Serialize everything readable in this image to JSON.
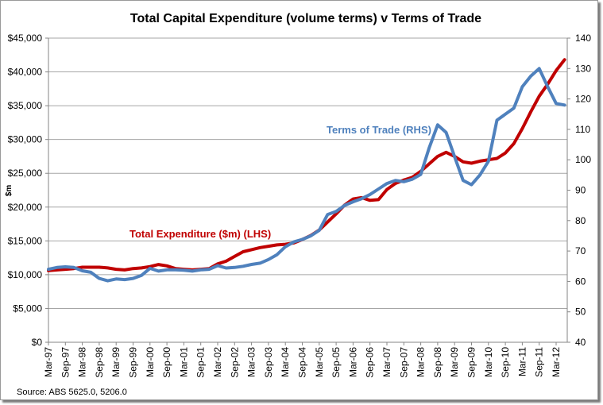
{
  "chart_data": {
    "type": "line",
    "title": "Total Capital Expenditure (volume terms) v Terms of Trade",
    "ylabel": "$m",
    "y2label": "",
    "xlabel": "",
    "ylim": [
      0,
      45000
    ],
    "y2lim": [
      40,
      140
    ],
    "grid": true,
    "yticks": [
      "$0",
      "$5,000",
      "$10,000",
      "$15,000",
      "$20,000",
      "$25,000",
      "$30,000",
      "$35,000",
      "$40,000",
      "$45,000"
    ],
    "ytick_values": [
      0,
      5000,
      10000,
      15000,
      20000,
      25000,
      30000,
      35000,
      40000,
      45000
    ],
    "y2ticks": [
      "40",
      "50",
      "60",
      "70",
      "80",
      "90",
      "100",
      "110",
      "120",
      "130",
      "140"
    ],
    "y2tick_values": [
      40,
      50,
      60,
      70,
      80,
      90,
      100,
      110,
      120,
      130,
      140
    ],
    "xtick_labels": [
      "Mar-97",
      "Sep-97",
      "Mar-98",
      "Sep-98",
      "Mar-99",
      "Sep-99",
      "Mar-00",
      "Sep-00",
      "Mar-01",
      "Sep-01",
      "Mar-02",
      "Sep-02",
      "Mar-03",
      "Sep-03",
      "Mar-04",
      "Sep-04",
      "Mar-05",
      "Sep-05",
      "Mar-06",
      "Sep-06",
      "Mar-07",
      "Sep-07",
      "Mar-08",
      "Sep-08",
      "Mar-09",
      "Sep-09",
      "Mar-10",
      "Sep-10",
      "Mar-11",
      "Sep-11",
      "Mar-12"
    ],
    "x_frequency": "quarterly",
    "series": [
      {
        "name": "Total Expenditure ($m) (LHS)",
        "axis": "left",
        "color": "#C00000",
        "values": [
          10600,
          10700,
          10800,
          10900,
          11100,
          11100,
          11100,
          11000,
          10800,
          10700,
          10900,
          11000,
          11200,
          11500,
          11300,
          10900,
          10800,
          10700,
          10800,
          10900,
          11600,
          12000,
          12700,
          13400,
          13700,
          14000,
          14200,
          14400,
          14500,
          14700,
          15200,
          15800,
          16600,
          17800,
          19000,
          20300,
          21200,
          21400,
          21000,
          21100,
          22600,
          23500,
          24000,
          24400,
          25300,
          26400,
          27500,
          28100,
          27500,
          26700,
          26500,
          26800,
          27000,
          27200,
          28000,
          29400,
          31600,
          34100,
          36400,
          38200,
          40200,
          41800
        ]
      },
      {
        "name": "Terms of Trade (RHS)",
        "axis": "right",
        "color": "#4F81BD",
        "values": [
          64.0,
          64.6,
          64.8,
          64.6,
          63.5,
          63.0,
          61.0,
          60.2,
          60.8,
          60.6,
          61.0,
          62.0,
          64.3,
          63.4,
          63.8,
          63.8,
          63.7,
          63.4,
          63.8,
          64.0,
          65.2,
          64.4,
          64.6,
          65.0,
          65.6,
          66.0,
          67.2,
          68.8,
          71.4,
          73.0,
          73.8,
          75.0,
          76.8,
          82.0,
          83.0,
          85.0,
          86.2,
          87.2,
          88.6,
          90.4,
          92.2,
          93.2,
          92.8,
          93.6,
          95.2,
          104.0,
          111.5,
          109.0,
          101.0,
          93.2,
          91.8,
          95.0,
          99.5,
          113.0,
          115.0,
          117.0,
          124.0,
          127.5,
          130.0,
          124.0,
          118.5,
          118.0
        ]
      }
    ],
    "annotations": [
      "Total Expenditure ($m) (LHS)",
      "Terms of Trade (RHS)"
    ],
    "legend": "inline-annotations"
  },
  "source_note": "Source: ABS 5625.0, 5206.0"
}
